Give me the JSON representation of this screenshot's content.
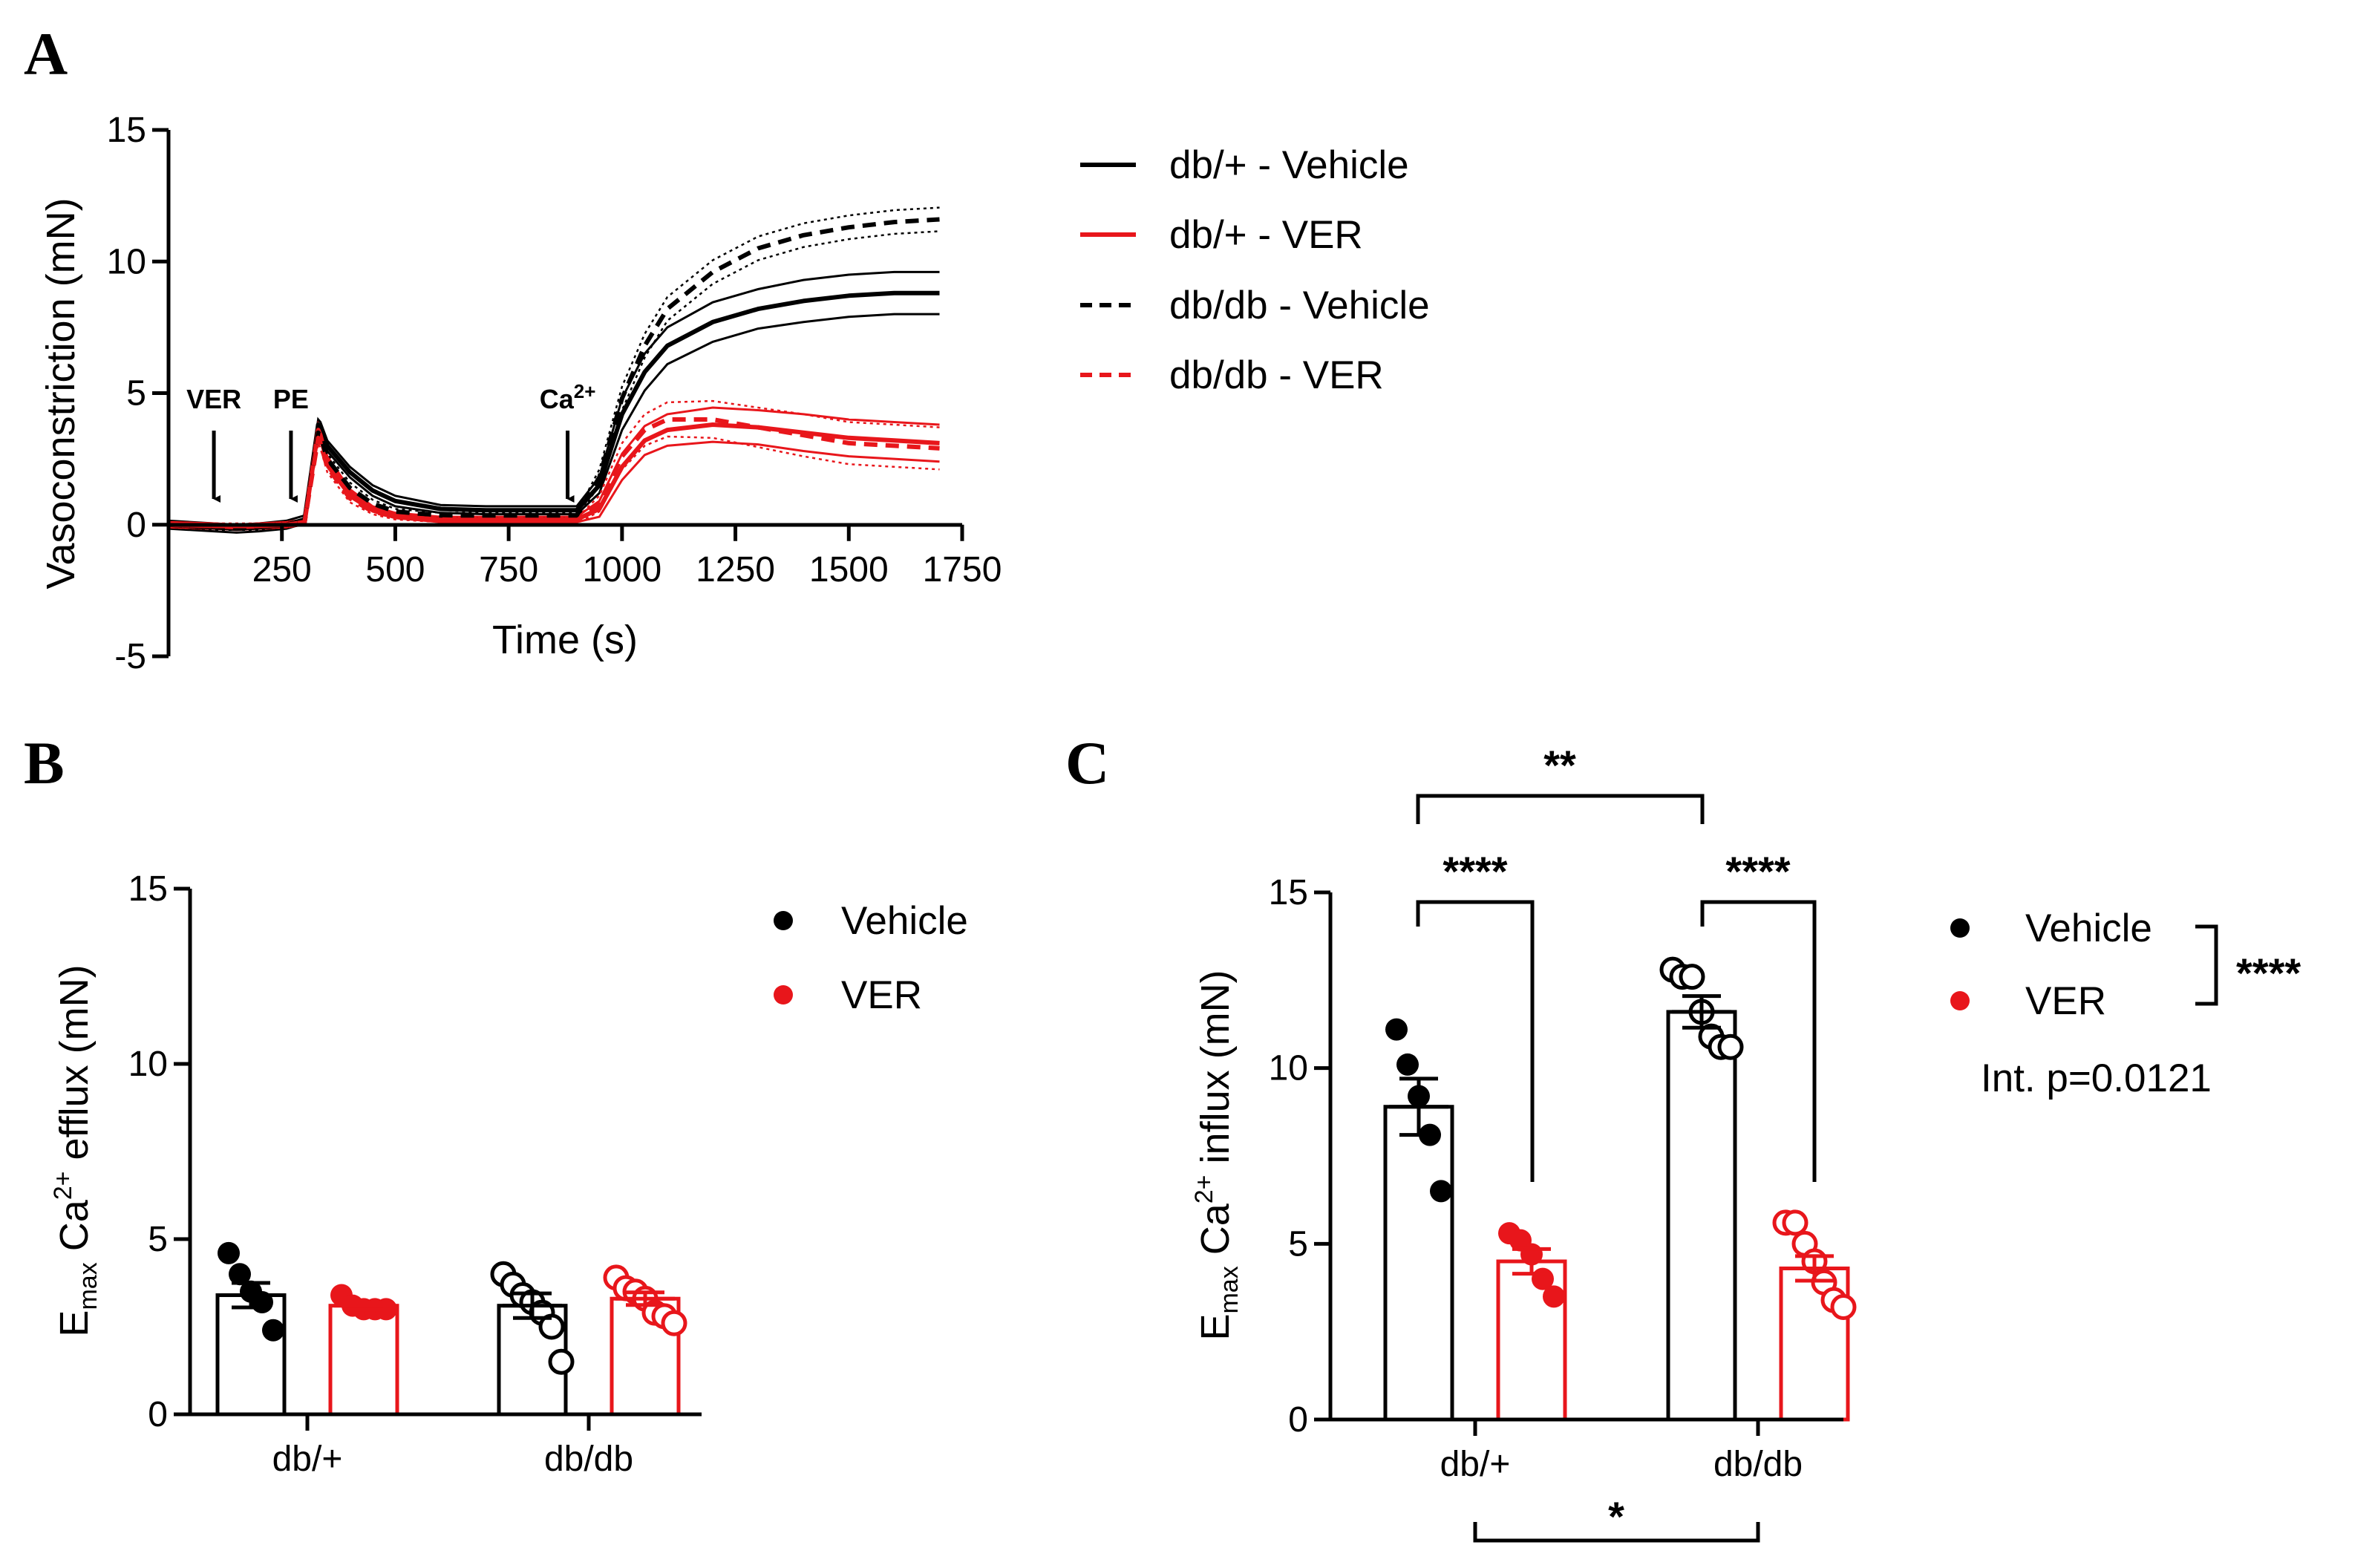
{
  "colors": {
    "vehicle": "#000000",
    "ver": "#e8161b"
  },
  "panel_labels": {
    "a": "A",
    "b": "B",
    "c": "C"
  },
  "chart_data": [
    {
      "panel": "A",
      "type": "line",
      "xlabel": "Time (s)",
      "ylabel": "Vasoconstriction (mN)",
      "xlim": [
        0,
        1750
      ],
      "ylim": [
        -5,
        15
      ],
      "xticks": [
        250,
        500,
        750,
        1000,
        1250,
        1500,
        1750
      ],
      "yticks": [
        -5,
        0,
        5,
        10,
        15
      ],
      "annotations": [
        {
          "label": "VER",
          "sup": "",
          "x": 100
        },
        {
          "label": "PE",
          "sup": "",
          "x": 270
        },
        {
          "label": "Ca",
          "sup": "2+",
          "x": 880
        }
      ],
      "x": [
        0,
        100,
        150,
        200,
        260,
        300,
        330,
        335,
        350,
        400,
        450,
        500,
        600,
        700,
        800,
        900,
        950,
        1000,
        1050,
        1100,
        1200,
        1300,
        1400,
        1500,
        1600,
        1700
      ],
      "series": [
        {
          "name": "db/+ - Vehicle",
          "dash": false,
          "color_key": "vehicle",
          "values": [
            0,
            -0.1,
            -0.15,
            -0.1,
            0,
            0.2,
            3.8,
            3.7,
            3.0,
            2.0,
            1.3,
            0.9,
            0.6,
            0.55,
            0.55,
            0.55,
            1.5,
            4.2,
            5.8,
            6.8,
            7.7,
            8.2,
            8.5,
            8.7,
            8.8,
            8.8
          ],
          "sem": [
            0.15,
            0.15,
            0.15,
            0.15,
            0.15,
            0.15,
            0.2,
            0.2,
            0.2,
            0.2,
            0.2,
            0.2,
            0.15,
            0.15,
            0.15,
            0.15,
            0.3,
            0.6,
            0.7,
            0.7,
            0.75,
            0.75,
            0.8,
            0.8,
            0.8,
            0.8
          ]
        },
        {
          "name": "db/+ - VER",
          "dash": false,
          "color_key": "ver",
          "values": [
            0,
            -0.05,
            -0.1,
            -0.05,
            0,
            0.1,
            3.6,
            3.4,
            2.4,
            1.2,
            0.6,
            0.35,
            0.2,
            0.2,
            0.2,
            0.2,
            0.6,
            2.2,
            3.2,
            3.6,
            3.8,
            3.7,
            3.5,
            3.3,
            3.2,
            3.1
          ],
          "sem": [
            0.1,
            0.1,
            0.1,
            0.1,
            0.1,
            0.1,
            0.2,
            0.2,
            0.2,
            0.15,
            0.1,
            0.1,
            0.1,
            0.1,
            0.1,
            0.1,
            0.3,
            0.5,
            0.55,
            0.6,
            0.65,
            0.65,
            0.7,
            0.7,
            0.7,
            0.7
          ]
        },
        {
          "name": "db/db - Vehicle",
          "dash": true,
          "color_key": "vehicle",
          "values": [
            0,
            -0.1,
            -0.1,
            -0.1,
            0,
            0.1,
            3.5,
            3.4,
            2.5,
            1.4,
            0.8,
            0.5,
            0.35,
            0.35,
            0.35,
            0.35,
            1.8,
            4.8,
            6.8,
            8.2,
            9.6,
            10.5,
            11.0,
            11.3,
            11.5,
            11.6
          ],
          "sem": [
            0.1,
            0.1,
            0.1,
            0.1,
            0.1,
            0.1,
            0.2,
            0.2,
            0.2,
            0.2,
            0.15,
            0.1,
            0.1,
            0.1,
            0.1,
            0.1,
            0.3,
            0.45,
            0.45,
            0.45,
            0.45,
            0.45,
            0.45,
            0.45,
            0.45,
            0.45
          ]
        },
        {
          "name": "db/db - VER",
          "dash": true,
          "color_key": "ver",
          "values": [
            0,
            -0.05,
            -0.05,
            -0.05,
            0,
            0.1,
            3.3,
            3.1,
            2.2,
            1.0,
            0.5,
            0.3,
            0.2,
            0.15,
            0.15,
            0.15,
            0.8,
            2.6,
            3.6,
            4.0,
            4.0,
            3.7,
            3.4,
            3.1,
            3.0,
            2.9
          ],
          "sem": [
            0.1,
            0.1,
            0.1,
            0.1,
            0.1,
            0.1,
            0.2,
            0.2,
            0.2,
            0.15,
            0.1,
            0.1,
            0.1,
            0.1,
            0.1,
            0.1,
            0.3,
            0.5,
            0.6,
            0.65,
            0.7,
            0.75,
            0.8,
            0.8,
            0.8,
            0.8
          ]
        }
      ]
    },
    {
      "panel": "B",
      "type": "bar",
      "ylabel_main": "E",
      "ylabel_sub": "max",
      "ylabel_mid": " Ca",
      "ylabel_sup": "2+",
      "ylabel_end": " efflux (mN)",
      "ylim": [
        0,
        15
      ],
      "yticks": [
        0,
        5,
        10,
        15
      ],
      "categories": [
        "db/+",
        "db/db"
      ],
      "legend": [
        "Vehicle",
        "VER"
      ],
      "series": [
        {
          "name": "Vehicle",
          "color_key": "vehicle",
          "values": [
            3.4,
            3.1
          ],
          "sem": [
            0.35,
            0.35
          ],
          "points": [
            [
              4.6,
              4.0,
              3.5,
              3.2,
              2.4
            ],
            [
              4.0,
              3.7,
              3.4,
              3.2,
              2.9,
              2.5,
              1.5
            ]
          ],
          "open": [
            false,
            true
          ]
        },
        {
          "name": "VER",
          "color_key": "ver",
          "values": [
            3.1,
            3.3
          ],
          "sem": [
            0.12,
            0.18
          ],
          "points": [
            [
              3.4,
              3.1,
              3.0,
              3.0,
              3.0
            ],
            [
              3.9,
              3.6,
              3.5,
              3.3,
              2.9,
              2.8,
              2.6
            ]
          ],
          "open": [
            false,
            true
          ]
        }
      ]
    },
    {
      "panel": "C",
      "type": "bar",
      "ylabel_main": "E",
      "ylabel_sub": "max",
      "ylabel_mid": " Ca",
      "ylabel_sup": "2+",
      "ylabel_end": " influx (mN)",
      "ylim": [
        0,
        15
      ],
      "yticks": [
        0,
        5,
        10,
        15
      ],
      "categories": [
        "db/+",
        "db/db"
      ],
      "legend": [
        "Vehicle",
        "VER"
      ],
      "legend_sig": "****",
      "interaction_text": "Int. p=0.0121",
      "series": [
        {
          "name": "Vehicle",
          "color_key": "vehicle",
          "values": [
            8.9,
            11.6
          ],
          "sem": [
            0.8,
            0.45
          ],
          "points": [
            [
              11.1,
              10.1,
              9.2,
              8.1,
              6.5
            ],
            [
              12.8,
              12.6,
              12.6,
              11.6,
              10.9,
              10.6,
              10.6
            ]
          ],
          "open": [
            false,
            true
          ]
        },
        {
          "name": "VER",
          "color_key": "ver",
          "values": [
            4.5,
            4.3
          ],
          "sem": [
            0.35,
            0.35
          ],
          "points": [
            [
              5.3,
              5.1,
              4.7,
              4.0,
              3.5
            ],
            [
              5.6,
              5.6,
              5.0,
              4.5,
              3.9,
              3.4,
              3.2
            ]
          ],
          "open": [
            false,
            true
          ]
        }
      ],
      "significance": {
        "top": "**",
        "pair_left": "****",
        "pair_right": "****",
        "bottom": "*"
      }
    }
  ]
}
